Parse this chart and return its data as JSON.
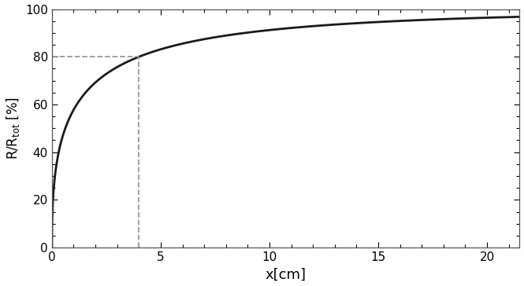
{
  "xlabel": "x[cm]",
  "ylabel": "R/R$_{\\rm tot}$ [%]",
  "xlim": [
    0,
    21.5
  ],
  "ylim": [
    0,
    100
  ],
  "xticks": [
    0,
    5,
    10,
    15,
    20
  ],
  "yticks": [
    0,
    20,
    40,
    60,
    80,
    100
  ],
  "curve_color": "#1a1a1a",
  "curve_linewidth": 2.0,
  "dashed_x": 4.0,
  "dashed_y": 80.0,
  "dashed_color": "#999999",
  "dashed_linewidth": 1.3,
  "background_color": "#ffffff",
  "power_n": 0.45,
  "xlabel_fontsize": 13,
  "ylabel_fontsize": 12,
  "tick_fontsize": 11
}
